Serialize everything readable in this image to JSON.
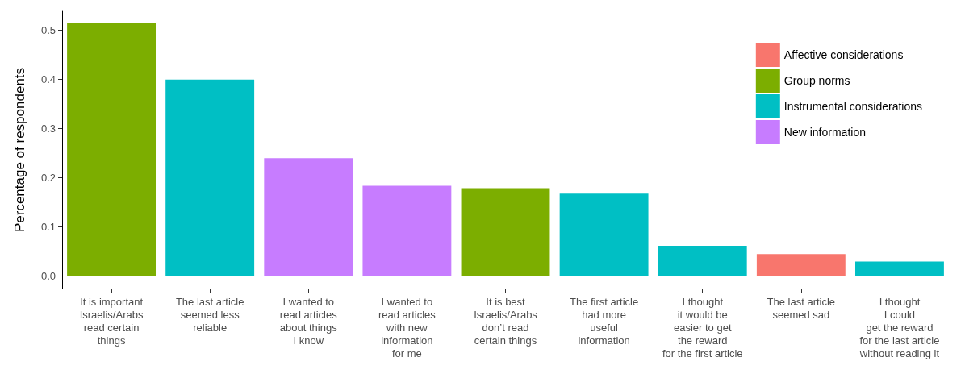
{
  "chart_data": {
    "type": "bar",
    "ylabel": "Percentage of respondents",
    "categories": [
      "It is important\nIsraelis/Arabs\nread certain\nthings",
      "The last article\nseemed less\nreliable",
      "I wanted to\nread articles\nabout things\nI know",
      "I wanted to\nread articles\nwith new\ninformation\nfor me",
      "It is best\nIsraelis/Arabs\ndon’t read\ncertain things",
      "The first article\nhad more\nuseful\ninformation",
      "I thought\nit would be\neasier to get\nthe reward\nfor the first article",
      "The last article\nseemed sad",
      "I thought\nI could\nget the reward\nfor the last article\nwithout reading it"
    ],
    "series": [
      {
        "name": "Affective considerations",
        "color": "#f8766d",
        "values": [
          null,
          null,
          null,
          null,
          null,
          null,
          null,
          0.044,
          null
        ]
      },
      {
        "name": "Group norms",
        "color": "#7cae00",
        "values": [
          0.514,
          null,
          null,
          null,
          0.178,
          null,
          null,
          null,
          null
        ]
      },
      {
        "name": "Instrumental considerations",
        "color": "#00bfc4",
        "values": [
          null,
          0.399,
          null,
          null,
          null,
          0.167,
          0.061,
          null,
          0.029
        ]
      },
      {
        "name": "New information",
        "color": "#c77cff",
        "values": [
          null,
          null,
          0.239,
          0.183,
          null,
          null,
          null,
          null,
          null
        ]
      }
    ],
    "ylim": [
      -0.026,
      0.538
    ],
    "yticks": [
      {
        "value": 0,
        "label": "0.0"
      },
      {
        "value": 0.1,
        "label": "0.1"
      },
      {
        "value": 0.2,
        "label": "0.2"
      },
      {
        "value": 0.3,
        "label": "0.3"
      },
      {
        "value": 0.4,
        "label": "0.4"
      },
      {
        "value": 0.5,
        "label": "0.5"
      }
    ],
    "grid": false,
    "legend": "top right"
  }
}
